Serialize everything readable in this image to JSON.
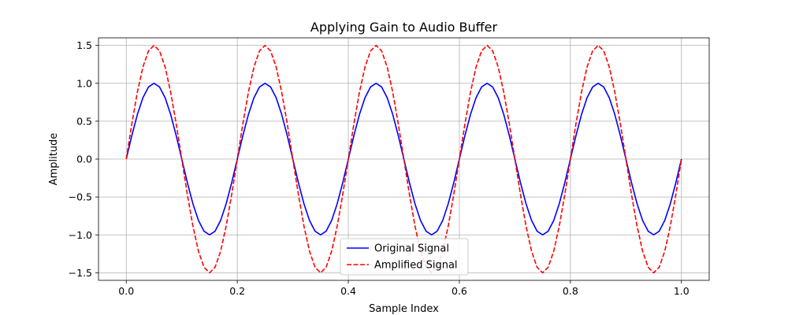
{
  "chart_data": {
    "type": "line",
    "title": "Applying Gain to Audio Buffer",
    "xlabel": "Sample Index",
    "ylabel": "Amplitude",
    "xlim": [
      -0.05,
      1.05
    ],
    "ylim": [
      -1.6,
      1.6
    ],
    "grid": true,
    "legend_position": "bottom-center",
    "xticks": [
      0.0,
      0.2,
      0.4,
      0.6,
      0.8,
      1.0
    ],
    "xtick_labels": [
      "0.0",
      "0.2",
      "0.4",
      "0.6",
      "0.8",
      "1.0"
    ],
    "yticks": [
      -1.5,
      -1.0,
      -0.5,
      0.0,
      0.5,
      1.0,
      1.5
    ],
    "ytick_labels": [
      "−1.5",
      "−1.0",
      "−0.5",
      "0.0",
      "0.5",
      "1.0",
      "1.5"
    ],
    "x": [
      0.0,
      0.01,
      0.02,
      0.03,
      0.04,
      0.05,
      0.06,
      0.07,
      0.08,
      0.09,
      0.1,
      0.11,
      0.12,
      0.13,
      0.14,
      0.15,
      0.16,
      0.17,
      0.18,
      0.19,
      0.2,
      0.21,
      0.22,
      0.23,
      0.24,
      0.25,
      0.26,
      0.27,
      0.28,
      0.29,
      0.3,
      0.31,
      0.32,
      0.33,
      0.34,
      0.35,
      0.36,
      0.37,
      0.38,
      0.39,
      0.4,
      0.41,
      0.42,
      0.43,
      0.44,
      0.45,
      0.46,
      0.47,
      0.48,
      0.49,
      0.5,
      0.51,
      0.52,
      0.53,
      0.54,
      0.55,
      0.56,
      0.57,
      0.58,
      0.59,
      0.6,
      0.61,
      0.62,
      0.63,
      0.64,
      0.65,
      0.66,
      0.67,
      0.68,
      0.69,
      0.7,
      0.71,
      0.72,
      0.73,
      0.74,
      0.75,
      0.76,
      0.77,
      0.78,
      0.79,
      0.8,
      0.81,
      0.82,
      0.83,
      0.84,
      0.85,
      0.86,
      0.87,
      0.88,
      0.89,
      0.9,
      0.91,
      0.92,
      0.93,
      0.94,
      0.95,
      0.96,
      0.97,
      0.98,
      0.99,
      1.0
    ],
    "series": [
      {
        "name": "Original Signal",
        "color": "#0000ff",
        "dash": "solid",
        "values": [
          0.0,
          0.309,
          0.588,
          0.809,
          0.951,
          1.0,
          0.951,
          0.809,
          0.588,
          0.309,
          0.0,
          -0.309,
          -0.588,
          -0.809,
          -0.951,
          -1.0,
          -0.951,
          -0.809,
          -0.588,
          -0.309,
          0.0,
          0.309,
          0.588,
          0.809,
          0.951,
          1.0,
          0.951,
          0.809,
          0.588,
          0.309,
          0.0,
          -0.309,
          -0.588,
          -0.809,
          -0.951,
          -1.0,
          -0.951,
          -0.809,
          -0.588,
          -0.309,
          0.0,
          0.309,
          0.588,
          0.809,
          0.951,
          1.0,
          0.951,
          0.809,
          0.588,
          0.309,
          0.0,
          -0.309,
          -0.588,
          -0.809,
          -0.951,
          -1.0,
          -0.951,
          -0.809,
          -0.588,
          -0.309,
          0.0,
          0.309,
          0.588,
          0.809,
          0.951,
          1.0,
          0.951,
          0.809,
          0.588,
          0.309,
          0.0,
          -0.309,
          -0.588,
          -0.809,
          -0.951,
          -1.0,
          -0.951,
          -0.809,
          -0.588,
          -0.309,
          0.0,
          0.309,
          0.588,
          0.809,
          0.951,
          1.0,
          0.951,
          0.809,
          0.588,
          0.309,
          0.0,
          -0.309,
          -0.588,
          -0.809,
          -0.951,
          -1.0,
          -0.951,
          -0.809,
          -0.588,
          -0.309,
          0.0
        ]
      },
      {
        "name": "Amplified Signal",
        "color": "#ff0000",
        "dash": "dashed",
        "values": [
          0.0,
          0.464,
          0.882,
          1.214,
          1.427,
          1.5,
          1.427,
          1.214,
          0.882,
          0.464,
          0.0,
          -0.464,
          -0.882,
          -1.214,
          -1.427,
          -1.5,
          -1.427,
          -1.214,
          -0.882,
          -0.464,
          0.0,
          0.464,
          0.882,
          1.214,
          1.427,
          1.5,
          1.427,
          1.214,
          0.882,
          0.464,
          0.0,
          -0.464,
          -0.882,
          -1.214,
          -1.427,
          -1.5,
          -1.427,
          -1.214,
          -0.882,
          -0.464,
          0.0,
          0.464,
          0.882,
          1.214,
          1.427,
          1.5,
          1.427,
          1.214,
          0.882,
          0.464,
          0.0,
          -0.464,
          -0.882,
          -1.214,
          -1.427,
          -1.5,
          -1.427,
          -1.214,
          -0.882,
          -0.464,
          0.0,
          0.464,
          0.882,
          1.214,
          1.427,
          1.5,
          1.427,
          1.214,
          0.882,
          0.464,
          0.0,
          -0.464,
          -0.882,
          -1.214,
          -1.427,
          -1.5,
          -1.427,
          -1.214,
          -0.882,
          -0.464,
          0.0,
          0.464,
          0.882,
          1.214,
          1.427,
          1.5,
          1.427,
          1.214,
          0.882,
          0.464,
          0.0,
          -0.464,
          -0.882,
          -1.214,
          -1.427,
          -1.5,
          -1.427,
          -1.214,
          -0.882,
          -0.464,
          0.0
        ]
      }
    ]
  }
}
